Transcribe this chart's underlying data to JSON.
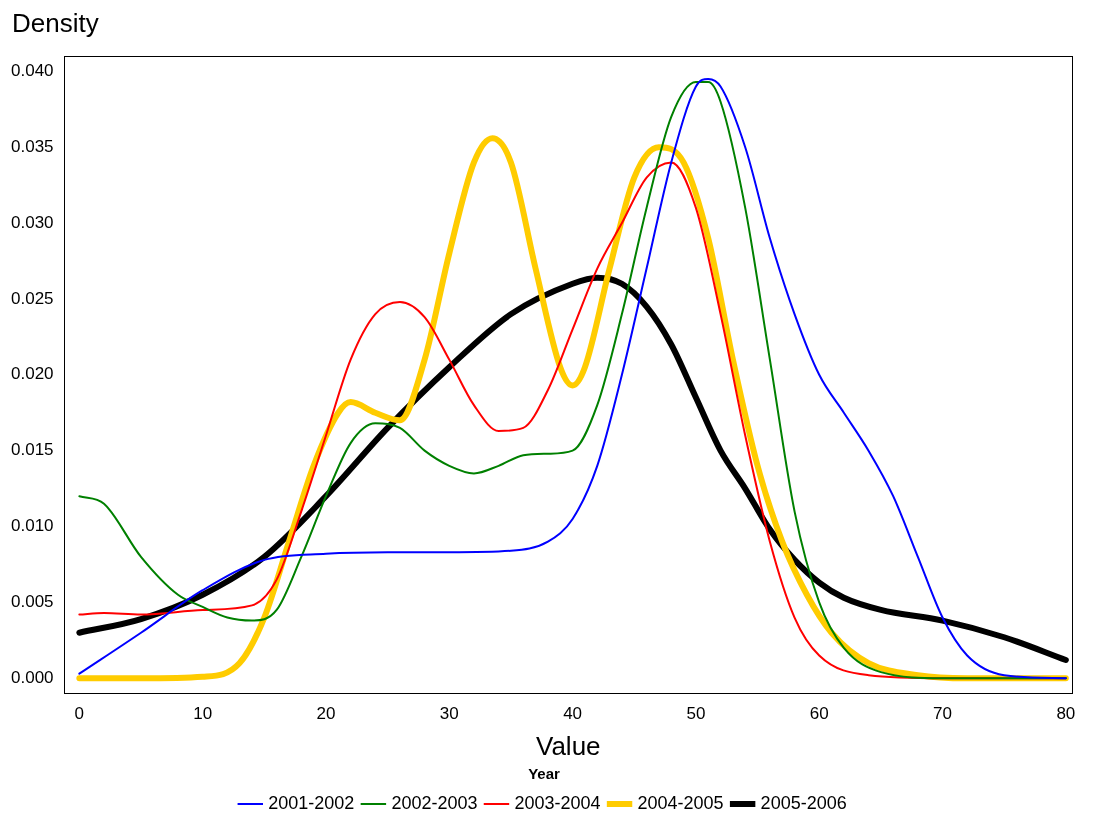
{
  "chart_data": {
    "type": "line",
    "xlabel": "Value",
    "ylabel": "Density",
    "legend_title": "Year",
    "legend": "bottom",
    "grid": false,
    "marker": "none",
    "line_style": "solid",
    "xlim": [
      -1.2,
      80.5
    ],
    "xticks": [
      0,
      10,
      20,
      30,
      40,
      50,
      60,
      70,
      80
    ],
    "ylim": [
      -0.001,
      0.041
    ],
    "yticks": [
      {
        "value": 0,
        "label": "0.000"
      },
      {
        "value": 0.005,
        "label": "0.005"
      },
      {
        "value": 0.01,
        "label": "0.010"
      },
      {
        "value": 0.015,
        "label": "0.015"
      },
      {
        "value": 0.02,
        "label": "0.020"
      },
      {
        "value": 0.025,
        "label": "0.025"
      },
      {
        "value": 0.03,
        "label": "0.030"
      },
      {
        "value": 0.035,
        "label": "0.035"
      },
      {
        "value": 0.04,
        "label": "0.040"
      }
    ],
    "series": [
      {
        "name": "2001-2002",
        "color": "#0000ff",
        "x": [
          0,
          5,
          10,
          15,
          20,
          25,
          30,
          35,
          38,
          40,
          42,
          44,
          46,
          48,
          50,
          51,
          52,
          54,
          56,
          58,
          60,
          62,
          64,
          66,
          68,
          70,
          72,
          75,
          80
        ],
        "values": [
          0.0003,
          0.003,
          0.0058,
          0.0078,
          0.0082,
          0.0083,
          0.0083,
          0.0084,
          0.009,
          0.0105,
          0.014,
          0.02,
          0.027,
          0.034,
          0.039,
          0.0395,
          0.039,
          0.035,
          0.029,
          0.024,
          0.02,
          0.0175,
          0.015,
          0.012,
          0.008,
          0.004,
          0.0015,
          0.0002,
          0
        ]
      },
      {
        "name": "2002-2003",
        "color": "#008000",
        "x": [
          0,
          2,
          5,
          8,
          10,
          12,
          14,
          16,
          18,
          20,
          22,
          24,
          26,
          28,
          30,
          32,
          34,
          36,
          38,
          40,
          42,
          44,
          46,
          48,
          50,
          51,
          52,
          54,
          56,
          58,
          60,
          62,
          65,
          70,
          80
        ],
        "values": [
          0.012,
          0.0115,
          0.008,
          0.0055,
          0.0047,
          0.004,
          0.0038,
          0.0045,
          0.008,
          0.012,
          0.0155,
          0.0168,
          0.0165,
          0.015,
          0.014,
          0.0135,
          0.014,
          0.0147,
          0.0148,
          0.015,
          0.018,
          0.024,
          0.031,
          0.037,
          0.0393,
          0.0393,
          0.038,
          0.031,
          0.021,
          0.011,
          0.005,
          0.002,
          0.0004,
          0,
          0
        ]
      },
      {
        "name": "2003-2004",
        "color": "#ff0000",
        "x": [
          0,
          2,
          5,
          10,
          14,
          16,
          18,
          20,
          22,
          24,
          26,
          28,
          30,
          32,
          34,
          36,
          38,
          40,
          42,
          44,
          46,
          48,
          50,
          52,
          54,
          56,
          58,
          60,
          64,
          70,
          80
        ],
        "values": [
          0.0042,
          0.0043,
          0.0042,
          0.0045,
          0.0048,
          0.0065,
          0.011,
          0.016,
          0.021,
          0.024,
          0.0248,
          0.0238,
          0.021,
          0.018,
          0.0163,
          0.0165,
          0.019,
          0.023,
          0.027,
          0.03,
          0.033,
          0.034,
          0.031,
          0.024,
          0.016,
          0.009,
          0.004,
          0.0015,
          0.0002,
          0,
          0
        ]
      },
      {
        "name": "2004-2005",
        "color": "#ffcc00",
        "x": [
          0,
          5,
          10,
          13,
          15,
          17,
          19,
          21,
          22,
          24,
          26,
          28,
          30,
          32,
          33.5,
          35,
          37,
          39,
          40,
          41,
          43,
          45,
          47,
          49,
          51,
          53,
          55,
          57,
          59,
          61,
          64,
          68,
          72,
          80
        ],
        "values": [
          0,
          0,
          0.0001,
          0.001,
          0.004,
          0.009,
          0.014,
          0.0175,
          0.0182,
          0.0175,
          0.017,
          0.021,
          0.028,
          0.034,
          0.0356,
          0.034,
          0.027,
          0.0205,
          0.0193,
          0.0205,
          0.027,
          0.033,
          0.035,
          0.034,
          0.029,
          0.021,
          0.014,
          0.009,
          0.0055,
          0.003,
          0.001,
          0.0002,
          0,
          0
        ]
      },
      {
        "name": "2005-2006",
        "color": "#000000",
        "x": [
          0,
          5,
          10,
          15,
          20,
          25,
          30,
          35,
          40,
          42,
          44,
          46,
          48,
          50,
          52,
          54,
          56,
          58,
          60,
          62,
          65,
          70,
          75,
          80
        ],
        "values": [
          0.003,
          0.0039,
          0.0055,
          0.008,
          0.012,
          0.0165,
          0.0205,
          0.024,
          0.026,
          0.0264,
          0.026,
          0.0245,
          0.022,
          0.0185,
          0.015,
          0.0125,
          0.0098,
          0.0078,
          0.0063,
          0.0053,
          0.0045,
          0.0038,
          0.0027,
          0.0012
        ]
      }
    ]
  }
}
